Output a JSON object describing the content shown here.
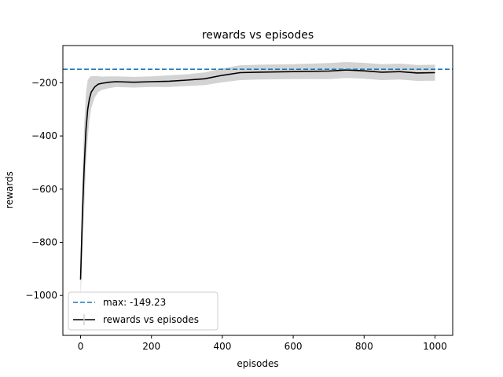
{
  "chart_data": {
    "type": "line",
    "title": "rewards vs episodes",
    "xlabel": "episodes",
    "ylabel": "rewards",
    "xlim": [
      -50,
      1050
    ],
    "ylim": [
      -1150,
      -60
    ],
    "xticks": [
      0,
      200,
      400,
      600,
      800,
      1000
    ],
    "yticks": [
      -1000,
      -800,
      -600,
      -400,
      -200
    ],
    "grid": false,
    "legend": {
      "placement": "lower-left",
      "entries": [
        "max: -149.23",
        "rewards vs episodes"
      ]
    },
    "series": [
      {
        "name": "rewards vs episodes",
        "style": "solid",
        "color": "#000000",
        "band_color": "#d3d3d3",
        "x": [
          0,
          5,
          10,
          15,
          20,
          25,
          30,
          40,
          50,
          60,
          80,
          100,
          150,
          200,
          250,
          300,
          350,
          400,
          450,
          500,
          600,
          700,
          750,
          800,
          850,
          900,
          950,
          1000
        ],
        "values": [
          -940,
          -700,
          -520,
          -380,
          -300,
          -260,
          -235,
          -215,
          -205,
          -202,
          -198,
          -196,
          -198,
          -196,
          -194,
          -190,
          -185,
          -172,
          -162,
          -160,
          -158,
          -156,
          -152,
          -155,
          -160,
          -158,
          -163,
          -162
        ],
        "spread": [
          70,
          150,
          160,
          140,
          110,
          80,
          60,
          40,
          30,
          25,
          22,
          20,
          20,
          20,
          22,
          22,
          24,
          26,
          28,
          28,
          28,
          30,
          30,
          30,
          30,
          30,
          30,
          30
        ]
      },
      {
        "name": "max: -149.23",
        "style": "dashed",
        "color": "#1f77b4",
        "x": [
          -50,
          1050
        ],
        "values": [
          -149.23,
          -149.23
        ]
      }
    ]
  }
}
